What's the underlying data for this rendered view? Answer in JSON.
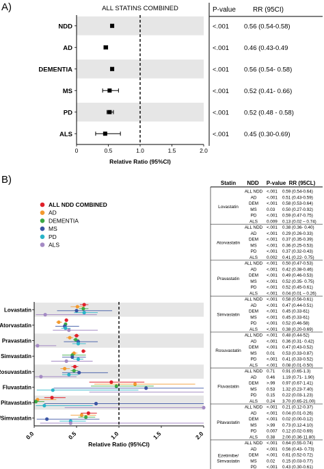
{
  "panels": {
    "a_label": "A)",
    "b_label": "B)"
  },
  "colors": {
    "stripe": "#e6e6e6",
    "all_ndd": "#e0202a",
    "ad": "#f39a2e",
    "dementia": "#3aa845",
    "ms": "#3a55a4",
    "pd": "#28b4c8",
    "als": "#a48ac4"
  },
  "chart_data": [
    {
      "type": "forest",
      "title": "ALL STATINS COMBINED",
      "xlabel": "Relative Ratio (95%CI)",
      "xlim": [
        0,
        2.0
      ],
      "xticks": [
        "0",
        "0.5",
        "1.0",
        "1.5",
        "2.0"
      ],
      "reference_line": 1.0,
      "table_headers": [
        "P-value",
        "RR (95CI)"
      ],
      "rows": [
        {
          "label": "NDD",
          "rr": 0.56,
          "lo": 0.54,
          "hi": 0.58,
          "p": "<.001",
          "text": "0.56 (0.54-0.58)"
        },
        {
          "label": "AD",
          "rr": 0.46,
          "lo": 0.43,
          "hi": 0.49,
          "p": "<.001",
          "text": "0.46 (0.43-0.49"
        },
        {
          "label": "DEMENTIA",
          "rr": 0.56,
          "lo": 0.54,
          "hi": 0.58,
          "p": "<.001",
          "text": "0.56 (0.54- 0.58)"
        },
        {
          "label": "MS",
          "rr": 0.52,
          "lo": 0.41,
          "hi": 0.66,
          "p": "<.001",
          "text": "0.52 (0.41- 0.66)"
        },
        {
          "label": "PD",
          "rr": 0.52,
          "lo": 0.48,
          "hi": 0.58,
          "p": "<.001",
          "text": "0.52 (0.48 - 0.58)"
        },
        {
          "label": "ALS",
          "rr": 0.45,
          "lo": 0.3,
          "hi": 0.69,
          "p": "<.001",
          "text": "0.45 (0.30-0.69)"
        }
      ]
    },
    {
      "type": "forest",
      "xlabel": "Relative Ratio (95%CI)",
      "xlim": [
        0,
        2.0
      ],
      "xticks": [
        "0.0",
        "0.5",
        "1.0",
        "1.5",
        "2.0"
      ],
      "reference_line": 1.0,
      "legend": [
        "ALL NDD COMBINED",
        "AD",
        "DEMENTIA",
        "MS",
        "PD",
        "ALS"
      ],
      "table_headers": [
        "Statin",
        "NDD",
        "P-value",
        "RR (95CL)"
      ],
      "groups": [
        {
          "statin": "Lovastatin",
          "plot_label": "Lovastatin",
          "rows": [
            {
              "ndd": "ALL NDD",
              "p": "<.001",
              "text": "0.59 (0.54-0.64)",
              "rr": 0.59,
              "lo": 0.54,
              "hi": 0.64
            },
            {
              "ndd": "AD",
              "p": "<.001",
              "text": "0.51 (0.43-0.59)",
              "rr": 0.51,
              "lo": 0.43,
              "hi": 0.59
            },
            {
              "ndd": "DEM",
              "p": "<.001",
              "text": "0.58 (0.53-0.64)",
              "rr": 0.58,
              "lo": 0.53,
              "hi": 0.64
            },
            {
              "ndd": "MS",
              "p": "0.03",
              "text": "0.50 (0.27-0.92)",
              "rr": 0.5,
              "lo": 0.27,
              "hi": 0.92
            },
            {
              "ndd": "PD",
              "p": "<.001",
              "text": "0.59 (0.47-0.75)",
              "rr": 0.59,
              "lo": 0.47,
              "hi": 0.75
            },
            {
              "ndd": "ALS",
              "p": "0.009",
              "text": "0.13 (0.02 – 0.74)",
              "rr": 0.13,
              "lo": 0.02,
              "hi": 0.74
            }
          ]
        },
        {
          "statin": "Atorvastatin",
          "plot_label": "Atorvastatin",
          "rows": [
            {
              "ndd": "ALL NDD",
              "p": "<.001",
              "text": "0.38 (0.36- 0.40)",
              "rr": 0.38,
              "lo": 0.36,
              "hi": 0.4
            },
            {
              "ndd": "AD",
              "p": "<.001",
              "text": "0.29 (0.26-0.33)",
              "rr": 0.29,
              "lo": 0.26,
              "hi": 0.33
            },
            {
              "ndd": "DEM",
              "p": "<.001",
              "text": "0.37 (0.35-0.39)",
              "rr": 0.37,
              "lo": 0.35,
              "hi": 0.39
            },
            {
              "ndd": "MS",
              "p": "<.001",
              "text": "0.36 (0.25-0.53)",
              "rr": 0.36,
              "lo": 0.25,
              "hi": 0.53
            },
            {
              "ndd": "PD",
              "p": "<.001",
              "text": "0.37 (0.32-0.43)",
              "rr": 0.37,
              "lo": 0.32,
              "hi": 0.43
            },
            {
              "ndd": "ALS",
              "p": "0.002",
              "text": "0.41 (0.22- 0.75)",
              "rr": 0.41,
              "lo": 0.22,
              "hi": 0.75
            }
          ]
        },
        {
          "statin": "Pravastatin",
          "plot_label": "Pravastatin",
          "rows": [
            {
              "ndd": "ALL NDD",
              "p": "<.001",
              "text": "0.50 (0.47-0.53)",
              "rr": 0.5,
              "lo": 0.47,
              "hi": 0.53
            },
            {
              "ndd": "AD",
              "p": "<.001",
              "text": "0.42 (0.38-0.46)",
              "rr": 0.42,
              "lo": 0.38,
              "hi": 0.46
            },
            {
              "ndd": "DEM",
              "p": "<.001",
              "text": "0.49 (0.46-0.53)",
              "rr": 0.49,
              "lo": 0.46,
              "hi": 0.53
            },
            {
              "ndd": "MS",
              "p": "<.001",
              "text": "0.52 (0.35- 0.75)",
              "rr": 0.52,
              "lo": 0.35,
              "hi": 0.75
            },
            {
              "ndd": "PD",
              "p": "<.001",
              "text": "0.52 (0.45-0.61)",
              "rr": 0.52,
              "lo": 0.45,
              "hi": 0.61
            },
            {
              "ndd": "ALS",
              "p": "<.001",
              "text": "0.04 (0.01 – 0.26)",
              "rr": 0.04,
              "lo": 0.01,
              "hi": 0.26
            }
          ]
        },
        {
          "statin": "Simvastatin",
          "plot_label": "Simvastatin",
          "rows": [
            {
              "ndd": "ALL NDD",
              "p": "<.001",
              "text": "0.58 (0.56-0.61)",
              "rr": 0.58,
              "lo": 0.56,
              "hi": 0.61
            },
            {
              "ndd": "AD",
              "p": "<.001",
              "text": "0.47 (0.44-0.51)",
              "rr": 0.47,
              "lo": 0.44,
              "hi": 0.51
            },
            {
              "ndd": "DEM",
              "p": "<.001",
              "text": "0.45 (0.33-61)",
              "rr": 0.45,
              "lo": 0.33,
              "hi": 0.61
            },
            {
              "ndd": "MS",
              "p": "<.001",
              "text": "0.45 (0.33-61)",
              "rr": 0.45,
              "lo": 0.33,
              "hi": 0.61
            },
            {
              "ndd": "PD",
              "p": "<.001",
              "text": "0.52 (0.46-58)",
              "rr": 0.52,
              "lo": 0.46,
              "hi": 0.58
            },
            {
              "ndd": "ALS",
              "p": "<.001",
              "text": "0.38 (0.20-0.69)",
              "rr": 0.38,
              "lo": 0.2,
              "hi": 0.69
            }
          ]
        },
        {
          "statin": "Rosuvastatin",
          "plot_label": "Rosuvastatin",
          "rows": [
            {
              "ndd": "ALL NDD",
              "p": "<.001",
              "text": "0.48 (0.44-52)",
              "rr": 0.48,
              "lo": 0.44,
              "hi": 0.52
            },
            {
              "ndd": "AD",
              "p": "<.001",
              "text": "0.36 (0.31- 0.42)",
              "rr": 0.36,
              "lo": 0.31,
              "hi": 0.42
            },
            {
              "ndd": "DEM",
              "p": "<.001",
              "text": "0.47 (0.43-0.52)",
              "rr": 0.47,
              "lo": 0.43,
              "hi": 0.52
            },
            {
              "ndd": "MS",
              "p": "0.01",
              "text": "0.53 (0.33-0.87)",
              "rr": 0.53,
              "lo": 0.33,
              "hi": 0.87
            },
            {
              "ndd": "PD",
              "p": "<.001",
              "text": "0.41 (0.33-0.52)",
              "rr": 0.41,
              "lo": 0.33,
              "hi": 0.52
            },
            {
              "ndd": "ALS",
              "p": "<.001",
              "text": "0.08 (0.01-0.50)",
              "rr": 0.08,
              "lo": 0.01,
              "hi": 0.5
            }
          ]
        },
        {
          "statin": "Fluvastatin",
          "plot_label": "Fluvastatin",
          "rows": [
            {
              "ndd": "ALL NDD",
              "p": "0.71",
              "text": "0.91 (0.65-1.3)",
              "rr": 0.91,
              "lo": 0.65,
              "hi": 1.3
            },
            {
              "ndd": "AD",
              "p": "0.46",
              "text": "1.19 (0.71- 1.90)",
              "rr": 1.19,
              "lo": 0.71,
              "hi": 1.9
            },
            {
              "ndd": "DEM",
              "p": ">.99",
              "text": "0.97 (0.67-1.41)",
              "rr": 0.97,
              "lo": 0.67,
              "hi": 1.41
            },
            {
              "ndd": "MS",
              "p": "0.53",
              "text": "1.32 (0.23-7.40)",
              "rr": 1.32,
              "lo": 0.23,
              "hi": 7.4
            },
            {
              "ndd": "PD",
              "p": "0.15",
              "text": "0.22 (0.03-1.23)",
              "rr": 0.22,
              "lo": 0.03,
              "hi": 1.23
            },
            {
              "ndd": "ALS",
              "p": "0.24",
              "text": "3.70 (0.65-21.00)",
              "rr": 3.7,
              "lo": 0.65,
              "hi": 21.0
            }
          ]
        },
        {
          "statin": "Pitavastatin",
          "plot_label": "Pitavastatin",
          "rows": [
            {
              "ndd": "ALL NDD",
              "p": "<.001",
              "text": "0.21 (0.12-0.37)",
              "rr": 0.21,
              "lo": 0.12,
              "hi": 0.37
            },
            {
              "ndd": "AD",
              "p": "<.001",
              "text": "0.04 (0.01-0.26)",
              "rr": 0.04,
              "lo": 0.01,
              "hi": 0.26
            },
            {
              "ndd": "DEM",
              "p": "<.001",
              "text": "0.02 (0.00-0.12)",
              "rr": 0.02,
              "lo": 0.0,
              "hi": 0.12
            },
            {
              "ndd": "MS",
              "p": ">.99",
              "text": "0.73 (0.12-4.10)",
              "rr": 0.73,
              "lo": 0.12,
              "hi": 4.1
            },
            {
              "ndd": "PD",
              "p": "0.007",
              "text": "0.12 (0.02-0.69)",
              "rr": 0.12,
              "lo": 0.02,
              "hi": 0.69
            },
            {
              "ndd": "ALS",
              "p": "0.38",
              "text": "2.00 (0.36-11.80)",
              "rr": 2.0,
              "lo": 0.36,
              "hi": 11.8
            }
          ]
        },
        {
          "statin": "Ezetimibe/\nSimvastatin",
          "plot_label": "Ezetimibe/Simvastatin",
          "rows": [
            {
              "ndd": "ALL NDD",
              "p": "<.001",
              "text": "0.64 (0.55-0.74)",
              "rr": 0.64,
              "lo": 0.55,
              "hi": 0.74
            },
            {
              "ndd": "AD",
              "p": "<.001",
              "text": "0.56 (0.43- 0.73)",
              "rr": 0.56,
              "lo": 0.43,
              "hi": 0.73
            },
            {
              "ndd": "DEM",
              "p": "<.001",
              "text": "0.61 (0.52-0.72)",
              "rr": 0.61,
              "lo": 0.52,
              "hi": 0.72
            },
            {
              "ndd": "MS",
              "p": "0.02",
              "text": "0.15 (0.03-0.77)",
              "rr": 0.15,
              "lo": 0.03,
              "hi": 0.77
            },
            {
              "ndd": "PD",
              "p": "<.001",
              "text": "0.43 (0.30-0.61)",
              "rr": 0.43,
              "lo": 0.3,
              "hi": 0.61
            },
            {
              "ndd": "ALS",
              "p": "0.73",
              "text": "0.43 (0.07-2.50)",
              "rr": 0.43,
              "lo": 0.07,
              "hi": 2.5
            }
          ]
        }
      ]
    }
  ]
}
